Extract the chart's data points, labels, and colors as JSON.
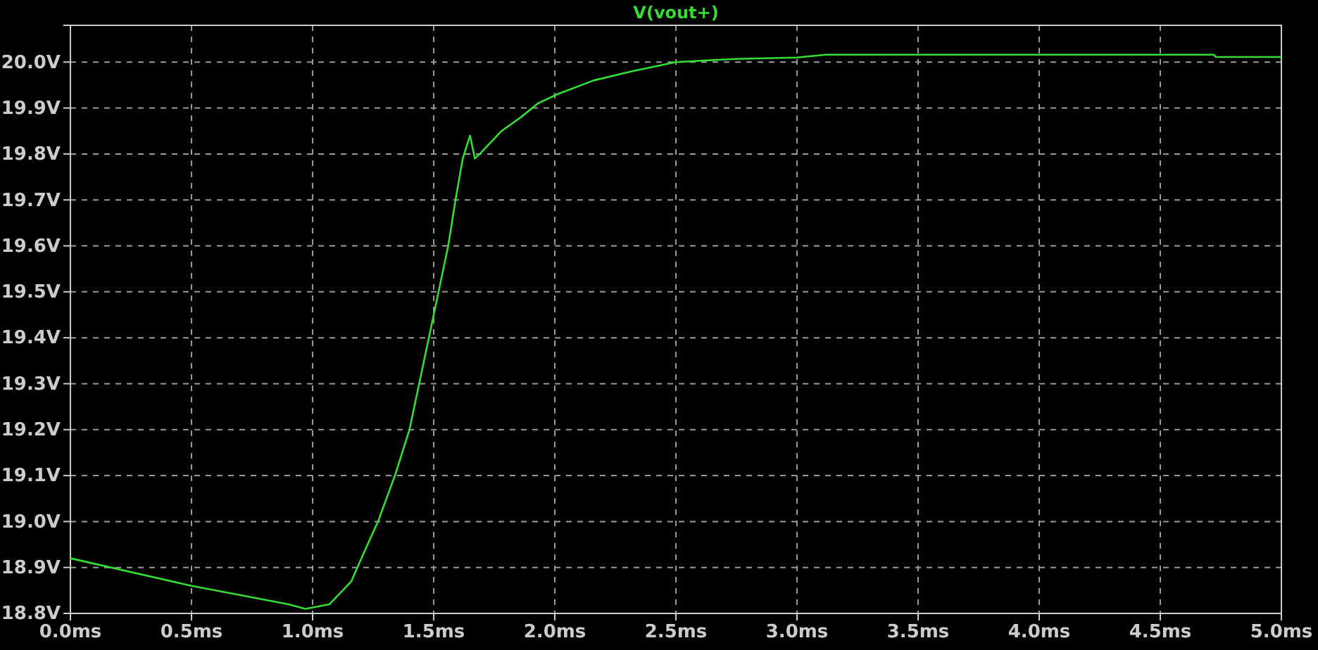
{
  "chart_data": {
    "type": "line",
    "title": "V(vout+)",
    "grid": true,
    "line_style": "solid",
    "marker": "none",
    "xlim": [
      0,
      5
    ],
    "ylim": [
      18.8,
      20.08
    ],
    "xticks": [
      {
        "value": 0,
        "label": "0.0ms"
      },
      {
        "value": 0.5,
        "label": "0.5ms"
      },
      {
        "value": 1,
        "label": "1.0ms"
      },
      {
        "value": 1.5,
        "label": "1.5ms"
      },
      {
        "value": 2,
        "label": "2.0ms"
      },
      {
        "value": 2.5,
        "label": "2.5ms"
      },
      {
        "value": 3,
        "label": "3.0ms"
      },
      {
        "value": 3.5,
        "label": "3.5ms"
      },
      {
        "value": 4,
        "label": "4.0ms"
      },
      {
        "value": 4.5,
        "label": "4.5ms"
      },
      {
        "value": 5,
        "label": "5.0ms"
      }
    ],
    "yticks": [
      {
        "value": 18.8,
        "label": "18.8V"
      },
      {
        "value": 18.9,
        "label": "18.9V"
      },
      {
        "value": 19,
        "label": "19.0V"
      },
      {
        "value": 19.1,
        "label": "19.1V"
      },
      {
        "value": 19.2,
        "label": "19.2V"
      },
      {
        "value": 19.3,
        "label": "19.3V"
      },
      {
        "value": 19.4,
        "label": "19.4V"
      },
      {
        "value": 19.5,
        "label": "19.5V"
      },
      {
        "value": 19.6,
        "label": "19.6V"
      },
      {
        "value": 19.7,
        "label": "19.7V"
      },
      {
        "value": 19.8,
        "label": "19.8V"
      },
      {
        "value": 19.9,
        "label": "19.9V"
      },
      {
        "value": 20,
        "label": "20.0V"
      }
    ],
    "series": [
      {
        "color": "#33dd33",
        "x": [
          0,
          0.5,
          0.9,
          0.97,
          1.07,
          1.16,
          1.21,
          1.27,
          1.34,
          1.4,
          1.44,
          1.48,
          1.52,
          1.56,
          1.59,
          1.62,
          1.65,
          1.67,
          1.69,
          1.78,
          1.86,
          1.93,
          2.01,
          2.16,
          2.32,
          2.5,
          2.75,
          3.0,
          3.12,
          4.72,
          4.73,
          5.0
        ],
        "values": [
          18.92,
          18.86,
          18.82,
          18.81,
          18.82,
          18.87,
          18.93,
          19.0,
          19.1,
          19.2,
          19.3,
          19.4,
          19.5,
          19.6,
          19.7,
          19.79,
          19.84,
          19.79,
          19.8,
          19.85,
          19.88,
          19.91,
          19.93,
          19.96,
          19.98,
          20.0,
          20.007,
          20.01,
          20.016,
          20.016,
          20.011,
          20.011
        ]
      }
    ]
  }
}
